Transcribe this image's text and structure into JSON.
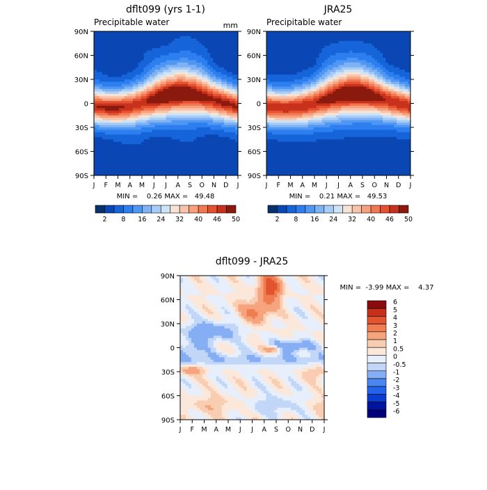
{
  "colors": {
    "seq": [
      "#08306b",
      "#0a47b4",
      "#1664d9",
      "#2d7ff0",
      "#4f97f2",
      "#7fb2f4",
      "#a7ccf6",
      "#cfe3f7",
      "#f7e3d4",
      "#f9c3a8",
      "#f6a07f",
      "#f17952",
      "#e6522f",
      "#c8321c",
      "#8b1a0e"
    ],
    "div": [
      "#00007a",
      "#00149e",
      "#0a3ed0",
      "#2563ea",
      "#4a86f0",
      "#85aef4",
      "#c2d7f8",
      "#e6effb",
      "#fbe8da",
      "#f9cdb1",
      "#f6a47e",
      "#f07d52",
      "#e2542d",
      "#c4301b",
      "#8a0c0c"
    ]
  },
  "charts": [
    {
      "type": "heatmap",
      "title": "dflt099 (yrs 1-1)",
      "subtitle": "Precipitable water",
      "units": "mm",
      "min_max": "MIN =    0.26 MAX =   49.48"
    },
    {
      "type": "heatmap",
      "title": "JRA25",
      "subtitle": "Precipitable water",
      "units": "",
      "min_max": "MIN =    0.21 MAX =   49.53"
    },
    {
      "type": "heatmap",
      "title": "dflt099 - JRA25",
      "subtitle": "",
      "units": "",
      "min_max": "MIN =  -3.99 MAX =    4.37"
    }
  ],
  "chart_data": [
    {
      "type": "heatmap",
      "title": "dflt099 (yrs 1-1)",
      "subtitle": "Precipitable water",
      "units": "mm",
      "x": [
        "J",
        "F",
        "M",
        "A",
        "M",
        "J",
        "J",
        "A",
        "S",
        "O",
        "N",
        "D",
        "J"
      ],
      "y_ticks": [
        "90N",
        "60N",
        "30N",
        "0",
        "30S",
        "60S",
        "90S"
      ],
      "y_range": [
        -90,
        90
      ],
      "min": 0.26,
      "max": 49.48,
      "colorbar_levels": [
        2,
        5,
        8,
        12,
        16,
        20,
        24,
        28,
        32,
        36,
        40,
        43,
        46,
        48,
        50
      ],
      "colorbar_labels": [
        "2",
        "8",
        "16",
        "24",
        "32",
        "40",
        "46",
        "50"
      ]
    },
    {
      "type": "heatmap",
      "title": "JRA25",
      "subtitle": "Precipitable water",
      "units": "",
      "x": [
        "J",
        "F",
        "M",
        "A",
        "M",
        "J",
        "J",
        "A",
        "S",
        "O",
        "N",
        "D",
        "J"
      ],
      "y_ticks": [
        "90N",
        "60N",
        "30N",
        "0",
        "30S",
        "60S",
        "90S"
      ],
      "y_range": [
        -90,
        90
      ],
      "min": 0.21,
      "max": 49.53,
      "colorbar_levels": [
        2,
        5,
        8,
        12,
        16,
        20,
        24,
        28,
        32,
        36,
        40,
        43,
        46,
        48,
        50
      ],
      "colorbar_labels": [
        "2",
        "8",
        "16",
        "24",
        "32",
        "40",
        "46",
        "50"
      ]
    },
    {
      "type": "heatmap",
      "title": "dflt099 - JRA25",
      "x": [
        "J",
        "F",
        "M",
        "A",
        "M",
        "J",
        "J",
        "A",
        "S",
        "O",
        "N",
        "D",
        "J"
      ],
      "y_ticks": [
        "90N",
        "60N",
        "30N",
        "0",
        "30S",
        "60S",
        "90S"
      ],
      "y_range": [
        -90,
        90
      ],
      "min": -3.99,
      "max": 4.37,
      "colorbar_labels": [
        "6",
        "5",
        "4",
        "3",
        "2",
        "1",
        "0.5",
        "0",
        "-0.5",
        "-1",
        "-2",
        "-3",
        "-4",
        "-5",
        "-6"
      ]
    }
  ]
}
